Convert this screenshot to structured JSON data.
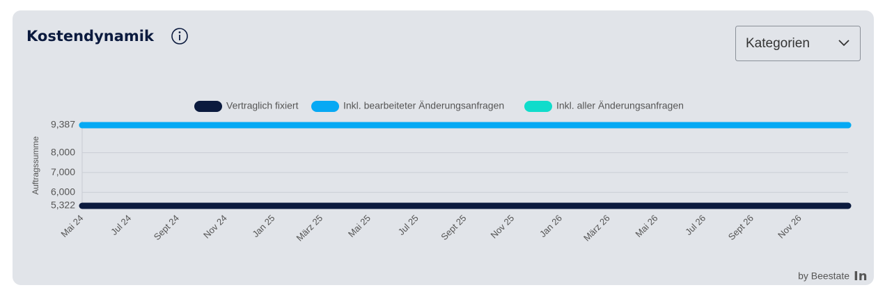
{
  "chart_data": {
    "type": "line",
    "title": "Kostendynamik",
    "y_label": "Auftragssumme",
    "categories": [
      "Mai 24",
      "Jul 24",
      "Sept 24",
      "Nov 24",
      "Jan 25",
      "März 25",
      "Mai 25",
      "Jul 25",
      "Sept 25",
      "Nov 25",
      "Jan 26",
      "März 26",
      "Mai 26",
      "Jul 26",
      "Sept 26",
      "Nov 26",
      null
    ],
    "series": [
      {
        "name": "Vertraglich fixiert",
        "color": "#0b1a3e",
        "values": [
          5322,
          5322,
          5322,
          5322,
          5322,
          5322,
          5322,
          5322,
          5322,
          5322,
          5322,
          5322,
          5322,
          5322,
          5322,
          5322,
          5322
        ]
      },
      {
        "name": "Inkl. bearbeiteter Änderungsanfragen",
        "color": "#06a9f4",
        "values": [
          9387,
          9387,
          9387,
          9387,
          9387,
          9387,
          9387,
          9387,
          9387,
          9387,
          9387,
          9387,
          9387,
          9387,
          9387,
          9387,
          9387
        ]
      },
      {
        "name": "Inkl. aller Änderungsanfragen",
        "color": "#10dccb",
        "values": [
          9387,
          9387,
          9387,
          9387,
          9387,
          9387,
          9387,
          9387,
          9387,
          9387,
          9387,
          9387,
          9387,
          9387,
          9387,
          9387,
          9387
        ]
      }
    ],
    "ylim": [
      5322,
      9387
    ],
    "yticks": [
      {
        "value": 5322,
        "label": "5,322"
      },
      {
        "value": 6000,
        "label": "6,000"
      },
      {
        "value": 7000,
        "label": "7,000"
      },
      {
        "value": 8000,
        "label": "8,000"
      },
      {
        "value": 9387,
        "label": "9,387"
      }
    ],
    "grid": true,
    "legend": "top"
  },
  "dropdown": {
    "label": "Kategorien"
  },
  "footer": {
    "brand": "by Beestate",
    "logo": "In"
  }
}
